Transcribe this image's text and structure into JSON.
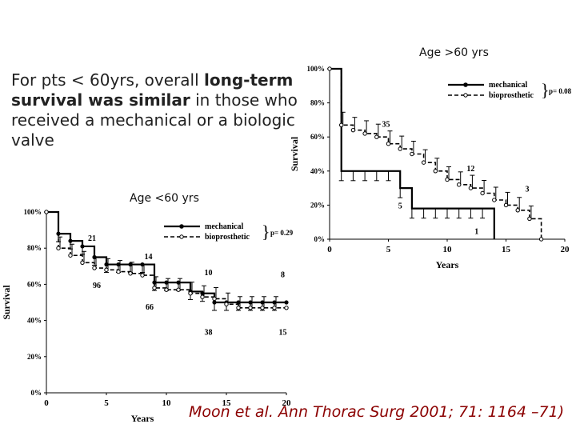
{
  "slide": {
    "text_plain": "For pts < 60yrs, overall ",
    "text_bold_1": "long-term survival was similar",
    "text_plain_2": " in those who received a mechanical or a biologic valve",
    "citation": "Moon et al. Ann Thorac Surg 2001; 71: 1164 –71)"
  },
  "chart_data": [
    {
      "type": "line",
      "title": "Age >60 yrs",
      "xlabel": "Years",
      "ylabel": "Survival",
      "x_ticks": [
        "0",
        "5",
        "10",
        "15",
        "20"
      ],
      "y_ticks": [
        "0%",
        "20%",
        "40%",
        "60%",
        "80%",
        "100%"
      ],
      "xlim": [
        0,
        20
      ],
      "ylim": [
        0,
        100
      ],
      "legend": [
        "mechanical",
        "bioprosthetic"
      ],
      "legend_note": "p= 0.08",
      "series": [
        {
          "name": "mechanical",
          "style": "solid",
          "x": [
            0,
            1,
            2,
            3,
            4,
            5,
            6,
            7,
            8,
            9,
            10,
            11,
            12,
            13,
            14
          ],
          "y": [
            100,
            40,
            40,
            40,
            40,
            40,
            30,
            18,
            18,
            18,
            18,
            18,
            18,
            18,
            0
          ]
        },
        {
          "name": "bioprosthetic",
          "style": "dashed",
          "x": [
            0,
            1,
            2,
            3,
            4,
            5,
            6,
            7,
            8,
            9,
            10,
            11,
            12,
            13,
            14,
            15,
            16,
            17,
            18
          ],
          "y": [
            100,
            67,
            64,
            62,
            60,
            56,
            53,
            50,
            45,
            40,
            35,
            32,
            30,
            27,
            23,
            20,
            17,
            12,
            0
          ]
        }
      ],
      "annotations": [
        {
          "text": "35",
          "x": 4.8,
          "y": 66
        },
        {
          "text": "12",
          "x": 12,
          "y": 40
        },
        {
          "text": "3",
          "x": 16.8,
          "y": 28
        },
        {
          "text": "5",
          "x": 6,
          "y": 18
        },
        {
          "text": "1",
          "x": 12.5,
          "y": 3
        }
      ]
    },
    {
      "type": "line",
      "title": "Age <60 yrs",
      "xlabel": "Years",
      "ylabel": "Survival",
      "x_ticks": [
        "0",
        "5",
        "10",
        "15",
        "20"
      ],
      "y_ticks": [
        "0%",
        "20%",
        "40%",
        "60%",
        "80%",
        "100%"
      ],
      "xlim": [
        0,
        20
      ],
      "ylim": [
        0,
        100
      ],
      "legend": [
        "mechanical",
        "bioprosthetic"
      ],
      "legend_note": "p= 0.29",
      "series": [
        {
          "name": "mechanical",
          "style": "solid",
          "x": [
            0,
            1,
            2,
            3,
            4,
            5,
            6,
            7,
            8,
            9,
            10,
            11,
            12,
            13,
            14,
            15,
            16,
            17,
            18,
            19,
            20
          ],
          "y": [
            100,
            88,
            84,
            81,
            75,
            71,
            71,
            71,
            71,
            61,
            61,
            61,
            56,
            55,
            50,
            50,
            50,
            50,
            50,
            50,
            50
          ]
        },
        {
          "name": "bioprosthetic",
          "style": "dashed",
          "x": [
            0,
            1,
            2,
            3,
            4,
            5,
            6,
            7,
            8,
            9,
            10,
            11,
            12,
            13,
            14,
            15,
            16,
            17,
            18,
            19,
            20
          ],
          "y": [
            100,
            80,
            76,
            72,
            69,
            68,
            67,
            66,
            65,
            58,
            57,
            57,
            55,
            53,
            52,
            49,
            47,
            47,
            47,
            47,
            47
          ]
        }
      ],
      "annotations": [
        {
          "text": "21",
          "x": 3.8,
          "y": 84
        },
        {
          "text": "14",
          "x": 8.5,
          "y": 74
        },
        {
          "text": "10",
          "x": 13.5,
          "y": 65
        },
        {
          "text": "8",
          "x": 19.7,
          "y": 64
        },
        {
          "text": "96",
          "x": 4.2,
          "y": 58
        },
        {
          "text": "66",
          "x": 8.6,
          "y": 46
        },
        {
          "text": "38",
          "x": 13.5,
          "y": 32
        },
        {
          "text": "15",
          "x": 19.7,
          "y": 32
        }
      ]
    }
  ]
}
